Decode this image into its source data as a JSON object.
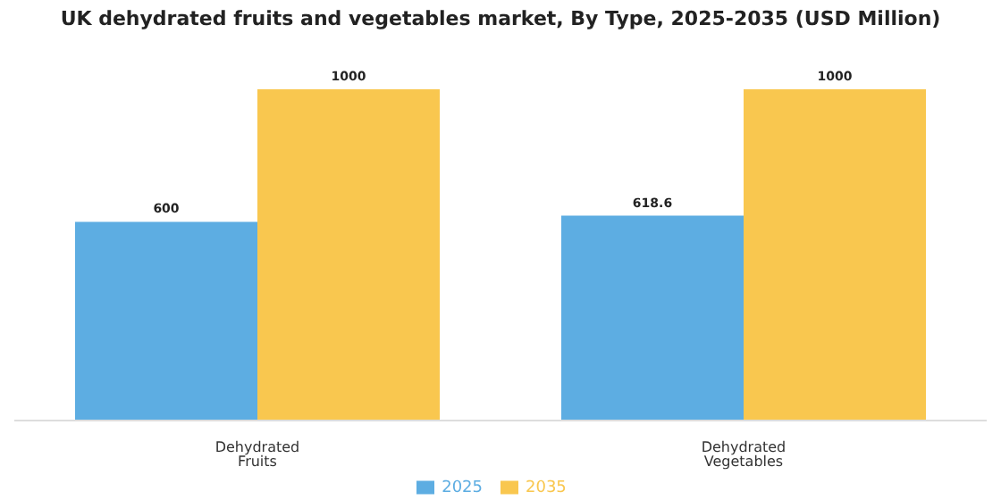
{
  "chart_data": {
    "type": "bar",
    "title": "UK dehydrated fruits and vegetables market, By Type, 2025-2035 (USD Million)",
    "categories": [
      "Dehydrated Fruits",
      "Dehydrated Vegetables"
    ],
    "series": [
      {
        "name": "2025",
        "color": "#5dade2",
        "values": [
          600,
          618.6
        ]
      },
      {
        "name": "2035",
        "color": "#f9c74f",
        "values": [
          1000,
          1000
        ]
      }
    ],
    "ylim": [
      0,
      1000
    ],
    "data_labels": true,
    "legend": "bottom",
    "grid": false,
    "tick_labels": "x"
  }
}
